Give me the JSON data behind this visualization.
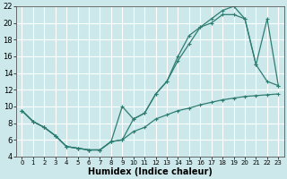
{
  "background_color": "#cce8ea",
  "grid_color": "#ffffff",
  "line_color": "#2e7d72",
  "line1_x": [
    0,
    1,
    2,
    3,
    4,
    5,
    6,
    7,
    8,
    9,
    10,
    11,
    12,
    13,
    14,
    15,
    16,
    17,
    18,
    19,
    20,
    21,
    22,
    23
  ],
  "line1_y": [
    9.5,
    8.2,
    7.5,
    6.5,
    5.2,
    5.0,
    4.8,
    4.8,
    5.8,
    6.0,
    7.0,
    7.5,
    8.5,
    9.0,
    9.5,
    9.8,
    10.2,
    10.5,
    10.8,
    11.0,
    11.2,
    11.3,
    11.4,
    11.5
  ],
  "line2_x": [
    0,
    1,
    2,
    3,
    4,
    5,
    6,
    7,
    8,
    9,
    10,
    11,
    12,
    13,
    14,
    15,
    16,
    17,
    18,
    19,
    20,
    21,
    22,
    23
  ],
  "line2_y": [
    9.5,
    8.2,
    7.5,
    6.5,
    5.2,
    5.0,
    4.8,
    4.8,
    5.8,
    6.0,
    8.5,
    9.2,
    11.5,
    13.0,
    15.5,
    17.5,
    19.5,
    20.5,
    21.5,
    22.0,
    20.5,
    15.0,
    13.0,
    12.5
  ],
  "line3_x": [
    0,
    1,
    2,
    3,
    4,
    5,
    6,
    7,
    8,
    9,
    10,
    11,
    12,
    13,
    14,
    15,
    16,
    17,
    18,
    19,
    20,
    21,
    22,
    23
  ],
  "line3_y": [
    9.5,
    8.2,
    7.5,
    6.5,
    5.2,
    5.0,
    4.8,
    4.8,
    5.8,
    10.0,
    8.5,
    9.2,
    11.5,
    13.0,
    16.0,
    18.5,
    19.5,
    20.0,
    21.0,
    21.0,
    20.5,
    15.0,
    20.5,
    12.5
  ],
  "xlabel": "Humidex (Indice chaleur)",
  "xlim": [
    -0.5,
    23.5
  ],
  "ylim": [
    4,
    22
  ],
  "yticks": [
    4,
    6,
    8,
    10,
    12,
    14,
    16,
    18,
    20,
    22
  ],
  "xticks": [
    0,
    1,
    2,
    3,
    4,
    5,
    6,
    7,
    8,
    9,
    10,
    11,
    12,
    13,
    14,
    15,
    16,
    17,
    18,
    19,
    20,
    21,
    22,
    23
  ],
  "marker": "+",
  "markersize": 3,
  "linewidth": 0.9
}
